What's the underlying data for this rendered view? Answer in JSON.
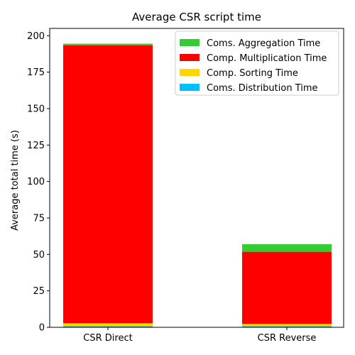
{
  "chart_data": {
    "type": "bar",
    "stacked": true,
    "title": "Average CSR script time",
    "xlabel": "",
    "ylabel": "Average total time (s)",
    "ylim": [
      0,
      205
    ],
    "yticks": [
      0,
      25,
      50,
      75,
      100,
      125,
      150,
      175,
      200
    ],
    "categories": [
      "CSR Direct",
      "CSR Reverse"
    ],
    "series": [
      {
        "name": "Coms. Distribution Time",
        "color": "#00bfff",
        "values": [
          0.8,
          0.8
        ]
      },
      {
        "name": "Comp. Sorting Time",
        "color": "#ffd700",
        "values": [
          2.0,
          1.5
        ]
      },
      {
        "name": "Comp. Multiplication Time",
        "color": "#ff0000",
        "values": [
          190.5,
          49.5
        ]
      },
      {
        "name": "Coms. Aggregation Time",
        "color": "#32cd32",
        "values": [
          1.2,
          5.2
        ]
      }
    ],
    "legend_order": [
      "Coms. Aggregation Time",
      "Comp. Multiplication Time",
      "Comp. Sorting Time",
      "Coms. Distribution Time"
    ],
    "legend_position": "top-right",
    "grid": false
  }
}
